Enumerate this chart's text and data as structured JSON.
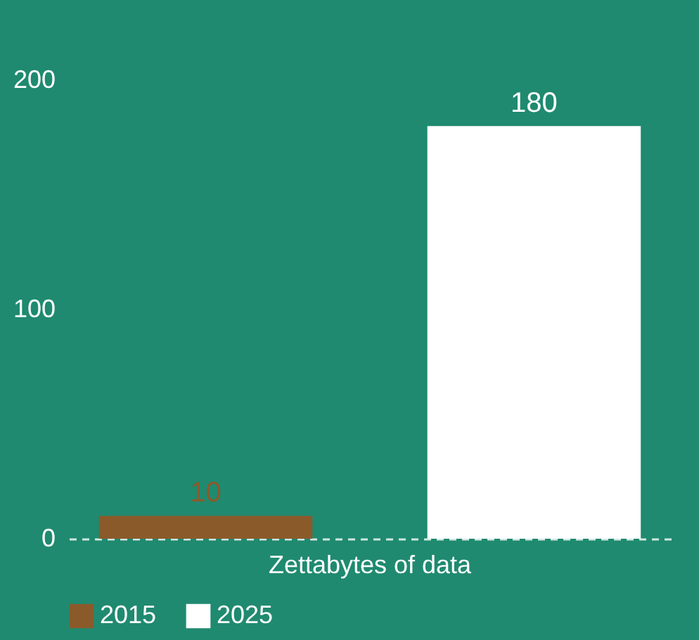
{
  "chart_data": {
    "type": "bar",
    "categories": [
      "Zettabytes of data"
    ],
    "series": [
      {
        "name": "2015",
        "color": "#8b5a2b",
        "values": [
          10
        ]
      },
      {
        "name": "2025",
        "color": "#ffffff",
        "values": [
          180
        ]
      }
    ],
    "ylim": [
      0,
      200
    ],
    "yticks": [
      0,
      100,
      200
    ],
    "grid": false,
    "legend": "bottom",
    "data_labels": true
  }
}
